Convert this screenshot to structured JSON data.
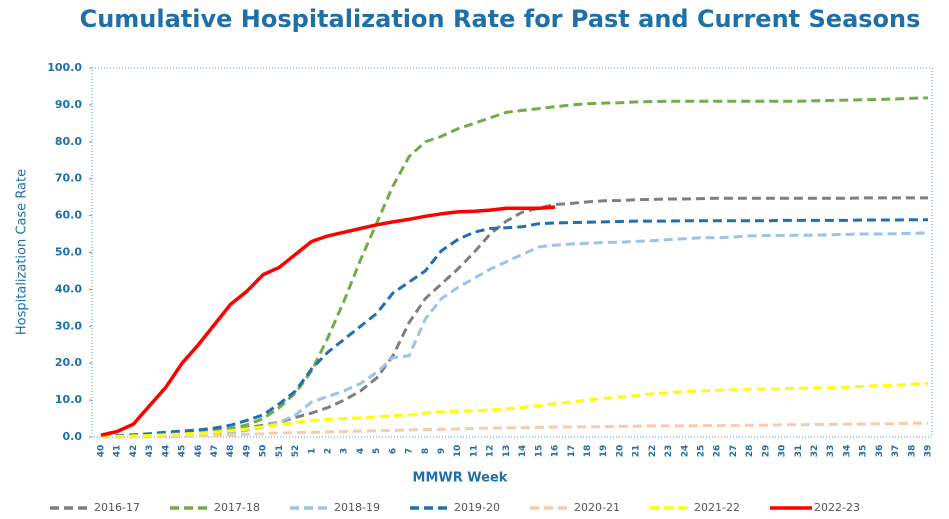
{
  "chart_data": {
    "type": "line",
    "title": "Cumulative Hospitalization Rate for Past and Current Seasons",
    "x_label": "MMWR Week",
    "y_label": "Hospitalization Case Rate",
    "categories": [
      "40",
      "41",
      "42",
      "43",
      "44",
      "45",
      "46",
      "47",
      "48",
      "49",
      "50",
      "51",
      "52",
      "1",
      "2",
      "3",
      "4",
      "5",
      "6",
      "7",
      "8",
      "9",
      "10",
      "11",
      "12",
      "13",
      "14",
      "15",
      "16",
      "17",
      "18",
      "19",
      "20",
      "21",
      "22",
      "23",
      "24",
      "25",
      "26",
      "27",
      "28",
      "29",
      "30",
      "31",
      "32",
      "33",
      "34",
      "35",
      "36",
      "37",
      "38",
      "39"
    ],
    "ylim": [
      0,
      100
    ],
    "yticks": [
      {
        "value": 0,
        "label": "0.0"
      },
      {
        "value": 10,
        "label": "10.0"
      },
      {
        "value": 20,
        "label": "20.0"
      },
      {
        "value": 30,
        "label": "30.0"
      },
      {
        "value": 40,
        "label": "40.0"
      },
      {
        "value": 50,
        "label": "50.0"
      },
      {
        "value": 60,
        "label": "60.0"
      },
      {
        "value": 70,
        "label": "70.0"
      },
      {
        "value": 80,
        "label": "80.0"
      },
      {
        "value": 90,
        "label": "90.0"
      },
      {
        "value": 100,
        "label": "100.0"
      }
    ],
    "legend": "bottom",
    "series": [
      {
        "name": "2016-17",
        "color": "#7f7f7f",
        "dashed": true,
        "values": [
          0.1,
          0.2,
          0.3,
          0.5,
          0.7,
          0.9,
          1.1,
          1.4,
          1.8,
          2.5,
          3.2,
          4,
          5.3,
          6.5,
          8,
          10,
          12.5,
          16,
          22,
          31,
          37.5,
          41.5,
          45.5,
          50,
          55,
          58.5,
          61,
          62,
          63,
          63.3,
          63.7,
          64,
          64.1,
          64.3,
          64.4,
          64.5,
          64.5,
          64.6,
          64.7,
          64.7,
          64.7,
          64.7,
          64.7,
          64.7,
          64.7,
          64.7,
          64.7,
          64.8,
          64.8,
          64.8,
          64.8,
          64.8
        ]
      },
      {
        "name": "2017-18",
        "color": "#70ad47",
        "dashed": true,
        "values": [
          0.1,
          0.2,
          0.3,
          0.5,
          0.8,
          1,
          1.3,
          1.7,
          2.3,
          3.3,
          5,
          8,
          12,
          18,
          27,
          37,
          48,
          58,
          68,
          76,
          80,
          81.5,
          83.5,
          85,
          86.5,
          88,
          88.5,
          89,
          89.5,
          90,
          90.3,
          90.5,
          90.6,
          90.8,
          90.9,
          91,
          91,
          91,
          91,
          91,
          91,
          91,
          91,
          91,
          91.1,
          91.2,
          91.3,
          91.4,
          91.5,
          91.6,
          91.8,
          91.9
        ]
      },
      {
        "name": "2018-19",
        "color": "#9dc3e6",
        "dashed": true,
        "values": [
          0,
          0.1,
          0.2,
          0.3,
          0.4,
          0.5,
          0.7,
          0.9,
          1.2,
          1.8,
          2.7,
          4,
          6,
          9.5,
          11,
          12.5,
          14.5,
          17.5,
          21.5,
          22,
          32,
          37.5,
          40.5,
          43,
          45.5,
          47.5,
          49.5,
          51.5,
          52,
          52.3,
          52.5,
          52.7,
          52.8,
          53,
          53.2,
          53.5,
          53.7,
          54,
          54,
          54.2,
          54.5,
          54.6,
          54.6,
          54.7,
          54.7,
          54.8,
          54.9,
          55,
          55,
          55.1,
          55.2,
          55.3
        ]
      },
      {
        "name": "2019-20",
        "color": "#1f6fb4",
        "dashed": true,
        "values": [
          0.2,
          0.4,
          0.6,
          0.9,
          1.3,
          1.6,
          1.9,
          2.4,
          3.2,
          4.5,
          6,
          9,
          12.5,
          18.5,
          23,
          26.5,
          30,
          33.5,
          39,
          42,
          45,
          50.5,
          53.5,
          55.5,
          56.5,
          56.7,
          57,
          57.8,
          58,
          58.1,
          58.2,
          58.3,
          58.4,
          58.5,
          58.5,
          58.5,
          58.6,
          58.6,
          58.6,
          58.6,
          58.6,
          58.6,
          58.7,
          58.7,
          58.7,
          58.7,
          58.7,
          58.8,
          58.8,
          58.8,
          58.9,
          58.9
        ]
      },
      {
        "name": "2020-21",
        "color": "#f8cbad",
        "dashed": true,
        "values": [
          0,
          0,
          0,
          0.1,
          0.1,
          0.2,
          0.3,
          0.4,
          0.5,
          0.7,
          0.9,
          1.1,
          1.2,
          1.3,
          1.4,
          1.5,
          1.6,
          1.7,
          1.8,
          1.9,
          2,
          2.1,
          2.2,
          2.3,
          2.4,
          2.5,
          2.5,
          2.6,
          2.7,
          2.7,
          2.8,
          2.8,
          2.9,
          2.9,
          3,
          3,
          3,
          3.1,
          3.1,
          3.1,
          3.2,
          3.2,
          3.3,
          3.3,
          3.4,
          3.4,
          3.5,
          3.5,
          3.6,
          3.6,
          3.7,
          3.7
        ]
      },
      {
        "name": "2021-22",
        "color": "#ffff00",
        "dashed": true,
        "values": [
          0.1,
          0.2,
          0.3,
          0.4,
          0.6,
          0.8,
          1,
          1.3,
          1.7,
          2.2,
          2.8,
          3.4,
          4,
          4.5,
          4.8,
          5,
          5.2,
          5.5,
          5.8,
          6,
          6.5,
          6.8,
          7,
          7.1,
          7.3,
          7.6,
          8,
          8.5,
          9,
          9.5,
          10,
          10.5,
          10.8,
          11.2,
          11.7,
          12,
          12.3,
          12.5,
          12.7,
          12.8,
          13,
          13,
          13.1,
          13.2,
          13.3,
          13.4,
          13.5,
          13.7,
          13.9,
          14,
          14.3,
          14.6
        ]
      },
      {
        "name": "2022-23",
        "color": "#ff0000",
        "dashed": false,
        "values": [
          0.5,
          1.5,
          3.5,
          8.5,
          13.5,
          20,
          25,
          30.5,
          36,
          39.5,
          44,
          46,
          49.5,
          53,
          54.5,
          55.5,
          56.5,
          57.5,
          58.3,
          59,
          59.8,
          60.5,
          61,
          61.2,
          61.5,
          62,
          62,
          62,
          62.3,
          null,
          null,
          null,
          null,
          null,
          null,
          null,
          null,
          null,
          null,
          null,
          null,
          null,
          null,
          null,
          null,
          null,
          null,
          null,
          null,
          null,
          null,
          null
        ]
      }
    ]
  }
}
